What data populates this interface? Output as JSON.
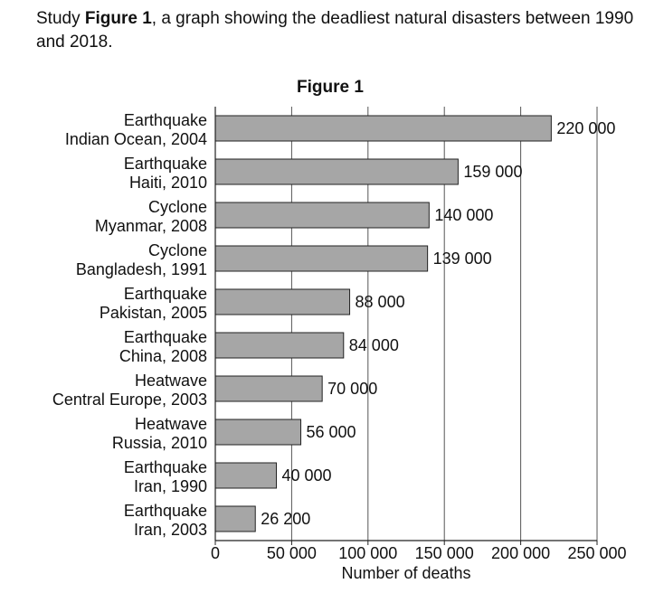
{
  "intro": {
    "prefix": "Study ",
    "bold": "Figure 1",
    "suffix": ", a graph showing the deadliest natural disasters between 1990 and 2018."
  },
  "chart_data": {
    "type": "bar",
    "orientation": "horizontal",
    "title": "Figure 1",
    "xlabel": "Number of deaths",
    "ylabel": "",
    "xlim": [
      0,
      250000
    ],
    "xticks": [
      0,
      50000,
      100000,
      150000,
      200000,
      250000
    ],
    "xtick_labels": [
      "0",
      "50 000",
      "100 000",
      "150 000",
      "200 000",
      "250 000"
    ],
    "grid": "vertical",
    "bar_color": "#a6a6a6",
    "categories": [
      {
        "line1": "Earthquake",
        "line2": "Indian Ocean, 2004"
      },
      {
        "line1": "Earthquake",
        "line2": "Haiti, 2010"
      },
      {
        "line1": "Cyclone",
        "line2": "Myanmar, 2008"
      },
      {
        "line1": "Cyclone",
        "line2": "Bangladesh, 1991"
      },
      {
        "line1": "Earthquake",
        "line2": "Pakistan, 2005"
      },
      {
        "line1": "Earthquake",
        "line2": "China, 2008"
      },
      {
        "line1": "Heatwave",
        "line2": "Central Europe, 2003"
      },
      {
        "line1": "Heatwave",
        "line2": "Russia, 2010"
      },
      {
        "line1": "Earthquake",
        "line2": "Iran, 1990"
      },
      {
        "line1": "Earthquake",
        "line2": "Iran, 2003"
      }
    ],
    "values": [
      220000,
      159000,
      140000,
      139000,
      88000,
      84000,
      70000,
      56000,
      40000,
      26200
    ],
    "value_labels": [
      "220 000",
      "159 000",
      "140 000",
      "139 000",
      "88 000",
      "84 000",
      "70 000",
      "56 000",
      "40 000",
      "26 200"
    ]
  }
}
